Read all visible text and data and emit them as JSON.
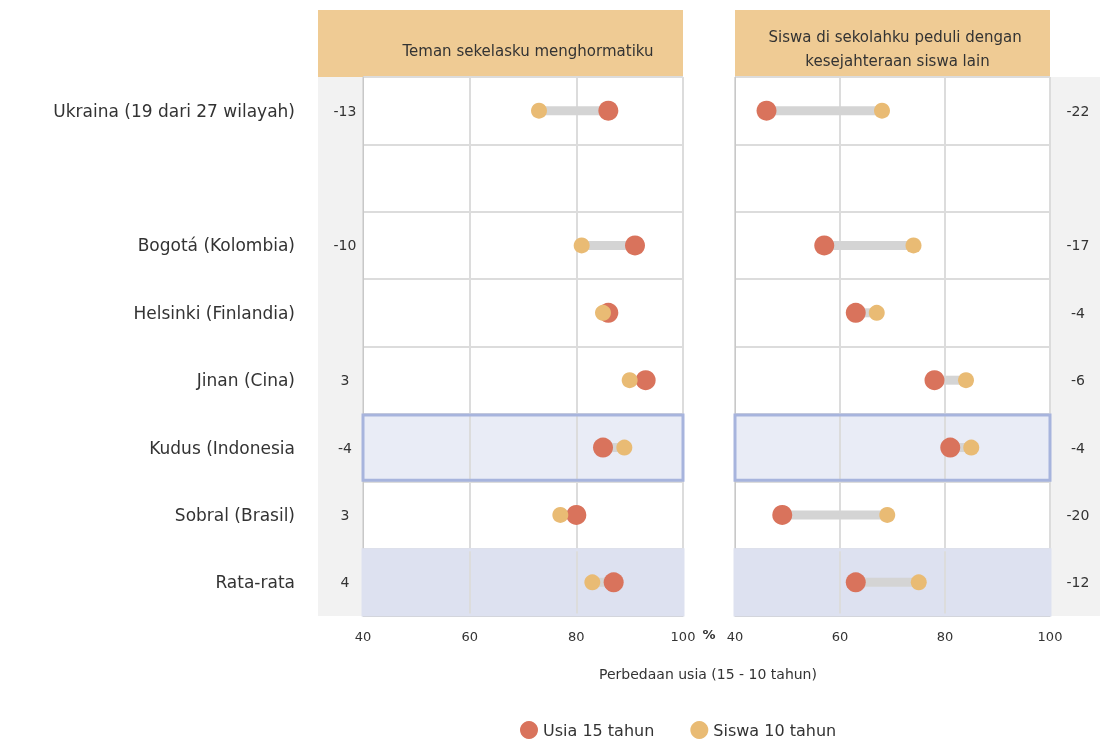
{
  "chart_data": [
    {
      "type": "scatter",
      "title": "Teman sekelasku menghormatiku",
      "orientation": "horizontal",
      "xlabel": "Perbedaan usia (15 - 10 tahun)",
      "categories": [
        "Ukraina (19 dari 27 wilayah)",
        null,
        "Bogotá (Kolombia)",
        "Helsinki (Finlandia)",
        "Jinan (Cina)",
        "Kudus (Indonesia",
        "Sobral (Brasil)",
        "Rata-rata"
      ],
      "series": [
        {
          "name": "Usia 15 tahun",
          "color": "#d9735c",
          "values": [
            86,
            null,
            91,
            86,
            93,
            85,
            80,
            87
          ]
        },
        {
          "name": "Siswa 10 tahun",
          "color": "#e9bb74",
          "values": [
            73,
            null,
            81,
            85,
            90,
            89,
            77,
            83
          ]
        }
      ],
      "xlim": [
        40,
        100
      ],
      "xticks": [
        40,
        60,
        80,
        100
      ],
      "grid": true,
      "legend": "bottom",
      "marker": "circle",
      "bands": [
        {
          "axis": "y",
          "from": "Rata-rata",
          "to": "Rata-rata",
          "color": "#dde1f0"
        },
        {
          "axis": "y",
          "from": "Kudus (Indonesia",
          "to": "Kudus (Indonesia",
          "color": "#a7b4dd"
        }
      ],
      "annotations": [
        "%",
        "-13",
        "-10",
        "3",
        "-4",
        "3",
        "4"
      ]
    },
    {
      "type": "scatter",
      "title": "Siswa di sekolahku peduli dengan kesejahteraan siswa lain",
      "orientation": "horizontal",
      "tick_labels": "x",
      "categories": [
        "Ukraina (19 dari 27 wilayah)",
        null,
        "Bogotá (Kolombia)",
        "Helsinki (Finlandia)",
        "Jinan (Cina)",
        "Kudus (Indonesia",
        "Sobral (Brasil)",
        "Rata-rata"
      ],
      "series": [
        {
          "color": "#d9735c",
          "values": [
            46,
            null,
            57,
            63,
            78,
            81,
            49,
            63
          ]
        },
        {
          "color": "#e9bb74",
          "values": [
            68,
            null,
            74,
            67,
            84,
            85,
            69,
            75
          ]
        }
      ],
      "xlim": [
        40,
        100
      ],
      "xticks": [
        40,
        60,
        80,
        100
      ],
      "grid": true,
      "marker": "circle",
      "bands": [
        {
          "axis": "y",
          "from": "Rata-rata",
          "to": "Rata-rata",
          "color": "#dde1f0"
        },
        {
          "axis": "y",
          "from": "Kudus (Indonesia",
          "to": "Kudus (Indonesia",
          "color": "#a7b4dd"
        }
      ],
      "annotations": [
        "-22",
        "-17",
        "-4",
        "-6",
        "-4",
        "-20",
        "-12"
      ]
    }
  ]
}
